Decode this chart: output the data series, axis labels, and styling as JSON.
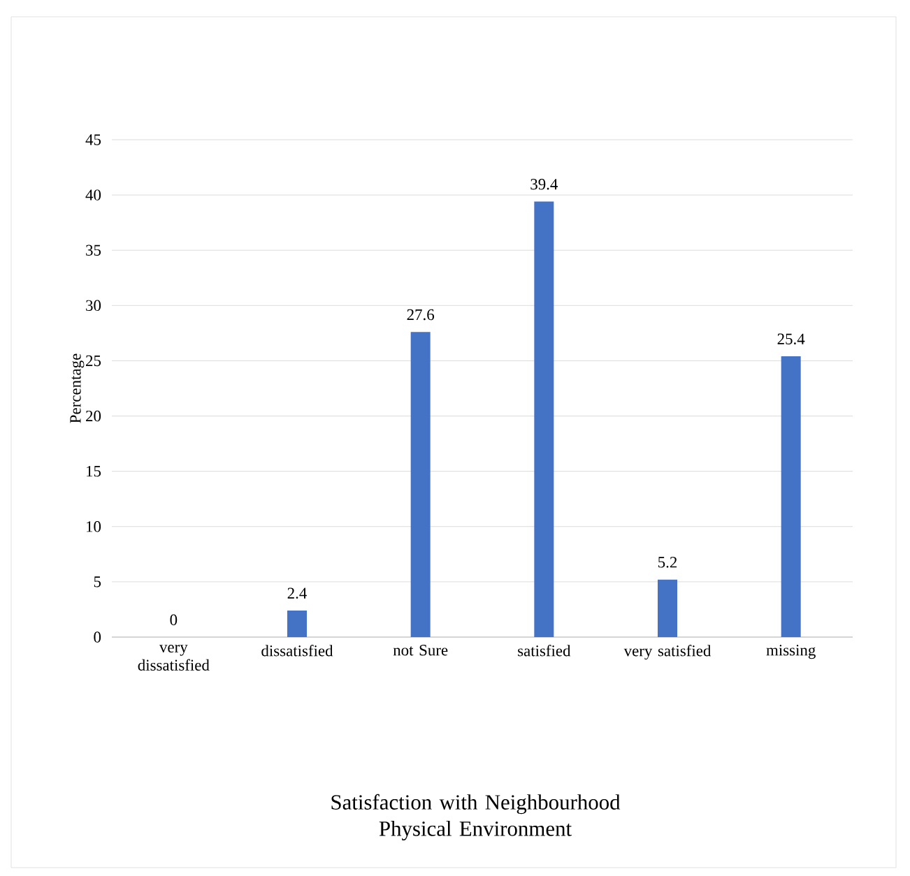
{
  "chart_data": {
    "type": "bar",
    "title": "Satisfaction with Neighbourhood Physical Environment",
    "ylabel": "Percentage",
    "categories": [
      "very dissatisfied",
      "dissatisfied",
      "not Sure",
      "satisfied",
      "very satisfied",
      "missing"
    ],
    "values": [
      0,
      2.4,
      27.6,
      39.4,
      5.2,
      25.4
    ],
    "color": "#4472c4",
    "ylim": [
      0,
      45
    ],
    "yticks": [
      0,
      5,
      10,
      15,
      20,
      25,
      30,
      35,
      40,
      45
    ],
    "grid": "y",
    "data_labels": true
  }
}
